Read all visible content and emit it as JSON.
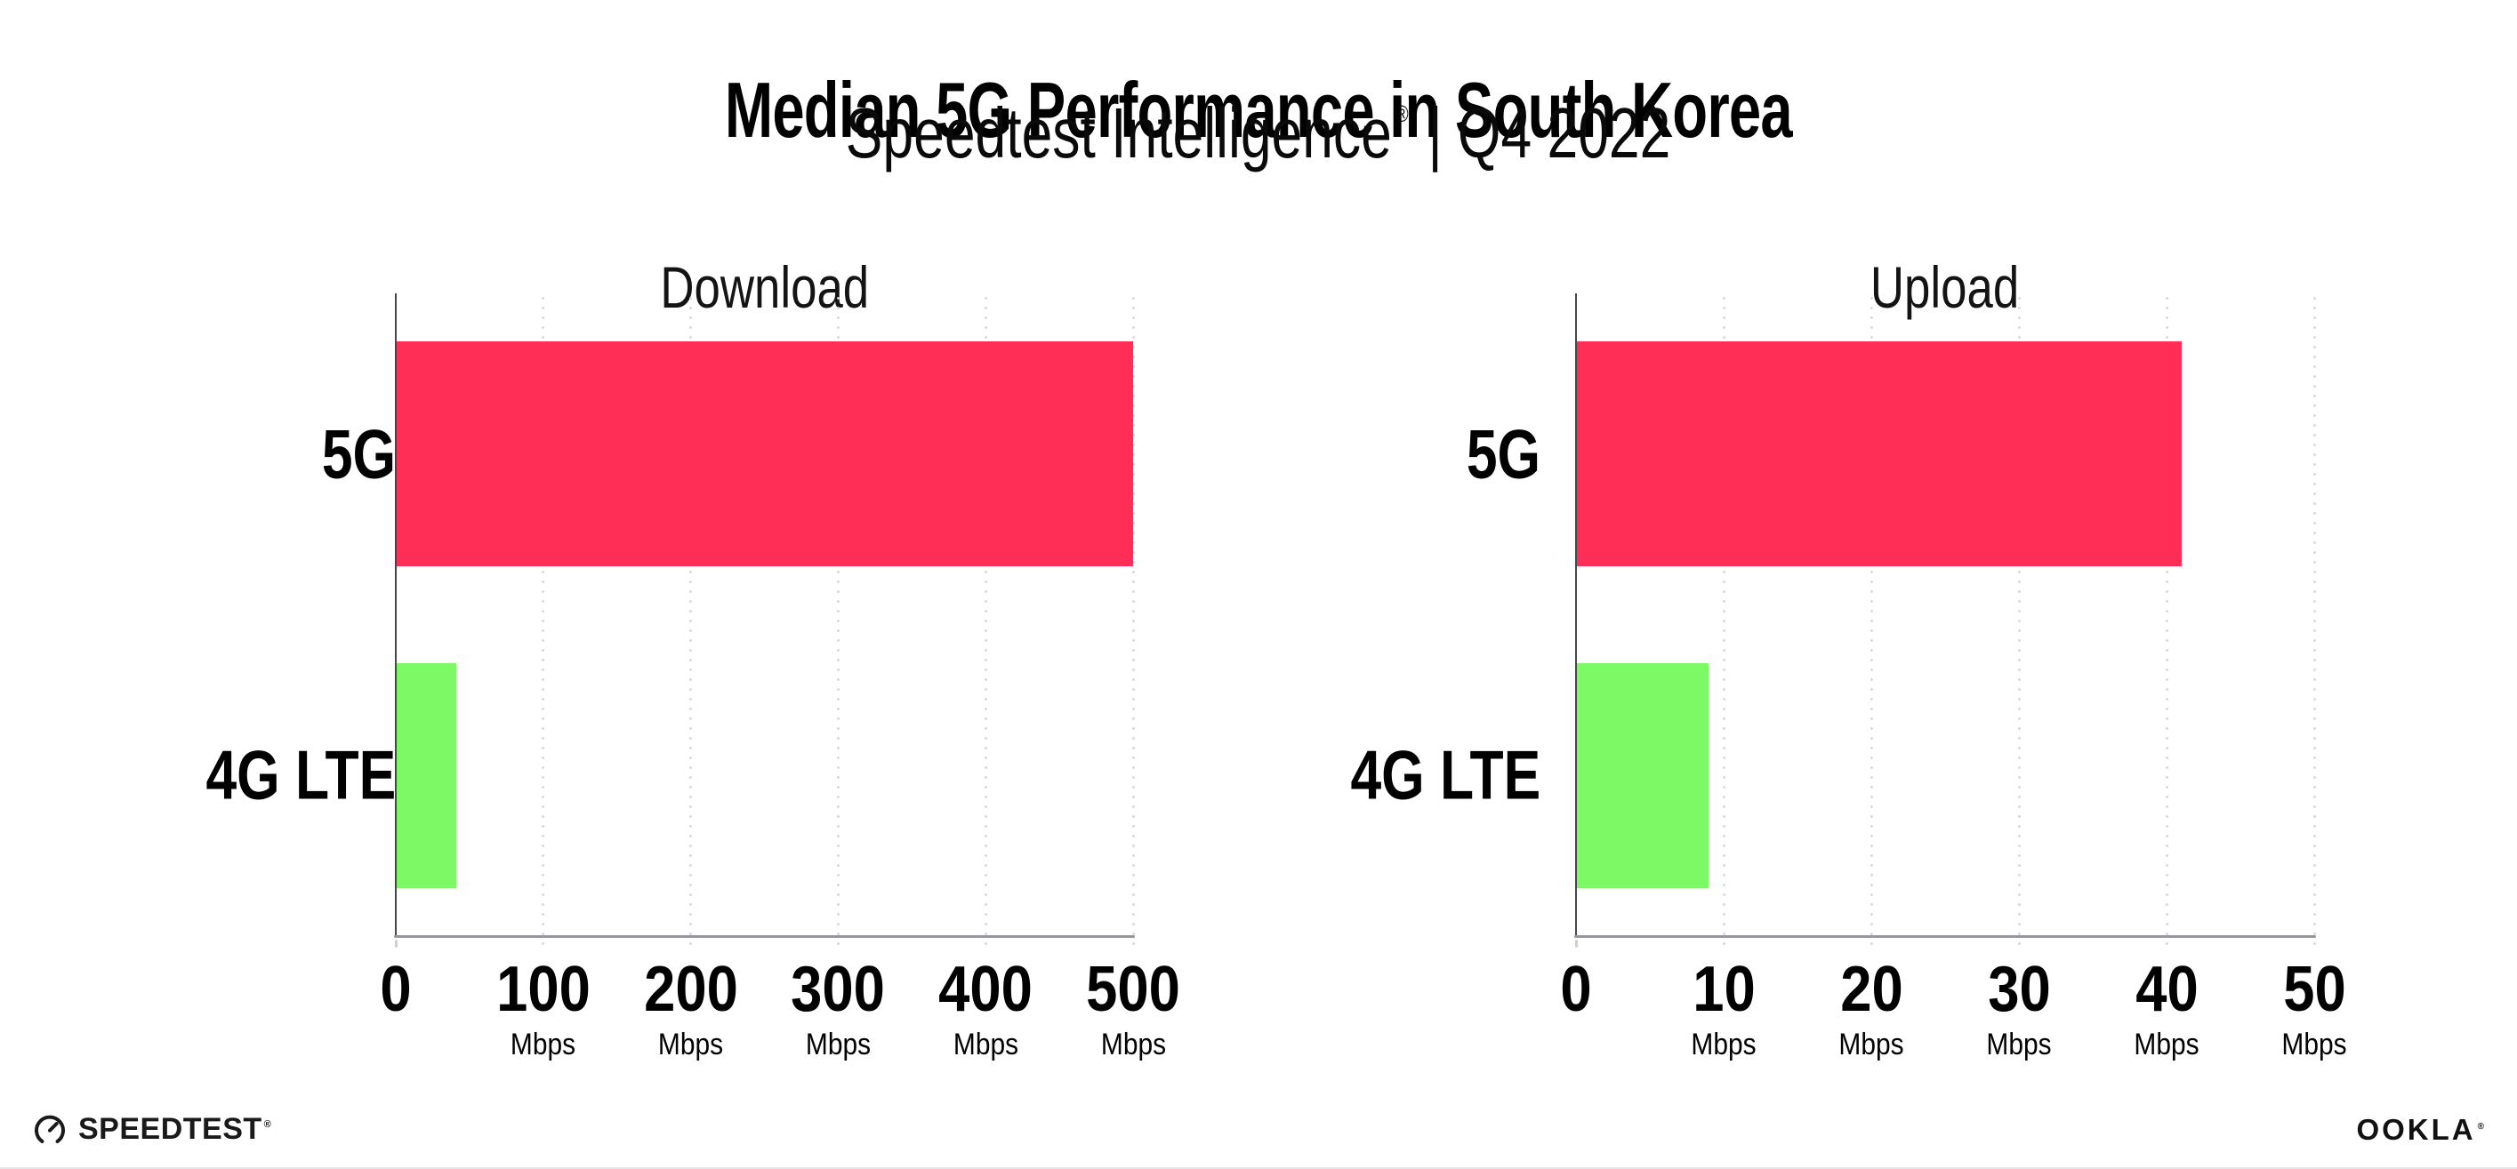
{
  "page": {
    "title": "Median 5G Performance in South Korea",
    "subtitle": {
      "brand": "Speedtest Intelligence",
      "registered_mark": "®",
      "separator": "|",
      "period": "Q4 2022"
    }
  },
  "chart_data": [
    {
      "type": "bar",
      "orientation": "horizontal",
      "title": "Download",
      "categories": [
        "5G",
        "4G LTE"
      ],
      "values": [
        500,
        41
      ],
      "unit": "Mbps",
      "xlabel": "",
      "ylabel": "",
      "xlim": [
        0,
        500
      ],
      "xticks": [
        0,
        100,
        200,
        300,
        400,
        500
      ],
      "grid": "vertical-dotted",
      "legend": "none",
      "bar_colors": [
        "#FF2E56",
        "#7EF966"
      ]
    },
    {
      "type": "bar",
      "orientation": "horizontal",
      "title": "Upload",
      "categories": [
        "5G",
        "4G LTE"
      ],
      "values": [
        41,
        9
      ],
      "unit": "Mbps",
      "xlabel": "",
      "ylabel": "",
      "xlim": [
        0,
        50
      ],
      "xticks": [
        0,
        10,
        20,
        30,
        40,
        50
      ],
      "grid": "vertical-dotted",
      "legend": "none",
      "bar_colors": [
        "#FF2E56",
        "#7EF966"
      ]
    }
  ],
  "footer": {
    "speedtest_wordmark": "SPEEDTEST",
    "speedtest_registered_mark": "®",
    "ookla_wordmark": "OOKLA",
    "ookla_registered_mark": "®"
  },
  "colors": {
    "bar_5g": "#FF2E56",
    "bar_4g_lte": "#7EF966",
    "gridline": "#D7D7DE",
    "x_axis_line": "#96969B",
    "y_axis_line": "#46464C",
    "text": "#000000",
    "background": "#FFFFFF"
  }
}
